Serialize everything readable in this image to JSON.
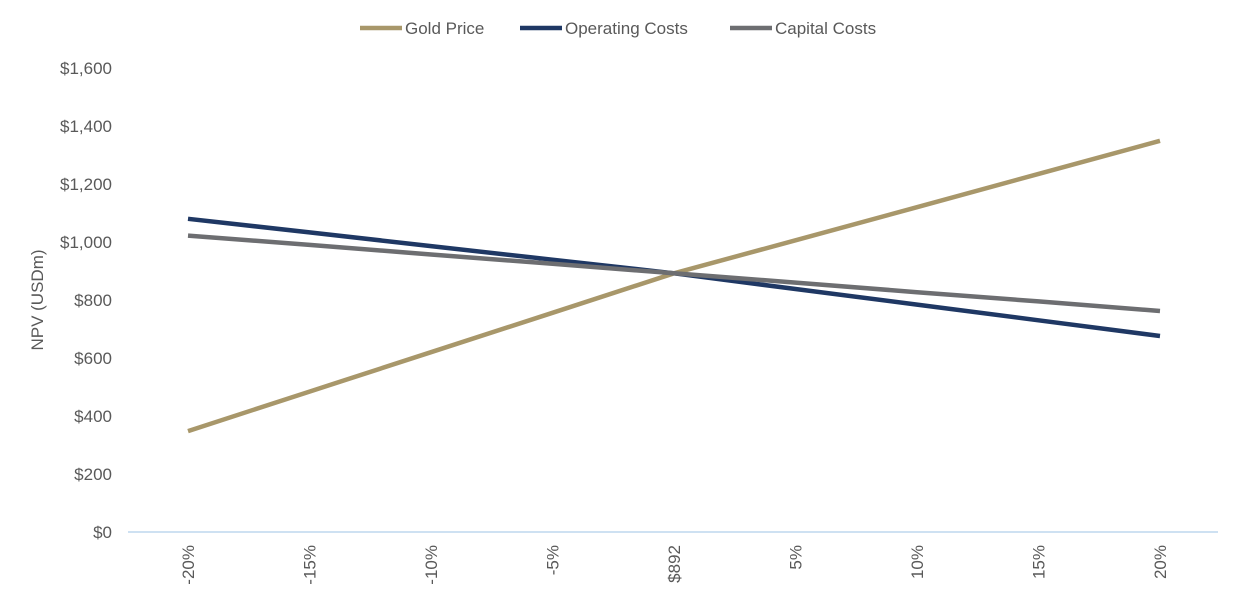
{
  "chart_data": {
    "type": "line",
    "title": "",
    "xlabel": "",
    "ylabel": "NPV (USDm)",
    "categories": [
      "-20%",
      "-15%",
      "-10%",
      "-5%",
      "$892",
      "5%",
      "10%",
      "15%",
      "20%"
    ],
    "ylim": [
      0,
      1600
    ],
    "yticks": [
      0,
      200,
      400,
      600,
      800,
      1000,
      1200,
      1400,
      1600
    ],
    "ytick_labels": [
      "$0",
      "$200",
      "$400",
      "$600",
      "$800",
      "$1,000",
      "$1,200",
      "$1,400",
      "$1,600"
    ],
    "grid": false,
    "legend_position": "top-center",
    "series": [
      {
        "name": "Gold Price",
        "color": "#A8976A",
        "values": [
          348,
          484,
          620,
          756,
          892,
          1006,
          1120,
          1235,
          1349
        ]
      },
      {
        "name": "Operating Costs",
        "color": "#1F3864",
        "values": [
          1080,
          1033,
          986,
          939,
          892,
          838,
          784,
          730,
          676
        ]
      },
      {
        "name": "Capital Costs",
        "color": "#6D6E71",
        "values": [
          1022,
          990,
          957,
          925,
          892,
          860,
          827,
          795,
          762
        ]
      }
    ],
    "axis_color": "#BDD7EE"
  }
}
